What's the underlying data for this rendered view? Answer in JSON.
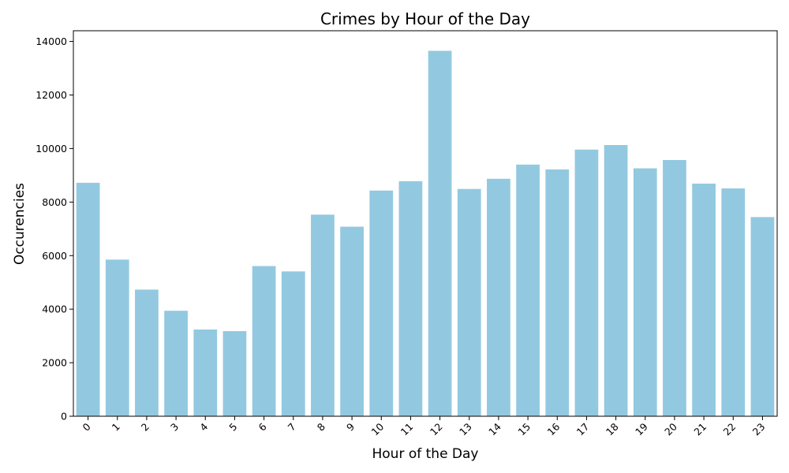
{
  "chart_data": {
    "type": "bar",
    "title": "Crimes by Hour of the Day",
    "xlabel": "Hour of the Day",
    "ylabel": "Occurencies",
    "categories": [
      "0",
      "1",
      "2",
      "3",
      "4",
      "5",
      "6",
      "7",
      "8",
      "9",
      "10",
      "11",
      "12",
      "13",
      "14",
      "15",
      "16",
      "17",
      "18",
      "19",
      "20",
      "21",
      "22",
      "23"
    ],
    "values": [
      8720,
      5850,
      4730,
      3940,
      3240,
      3180,
      5610,
      5410,
      7530,
      7080,
      8430,
      8780,
      13650,
      8490,
      8870,
      9400,
      9220,
      9960,
      10130,
      9260,
      9570,
      8690,
      8510,
      7440
    ],
    "ylim": [
      0,
      14400
    ],
    "yticks": [
      "0",
      "2000",
      "4000",
      "6000",
      "8000",
      "10000",
      "12000",
      "14000"
    ],
    "bar_color": "#92c9e0",
    "grid": false,
    "x_tick_rotation_deg": 45
  }
}
